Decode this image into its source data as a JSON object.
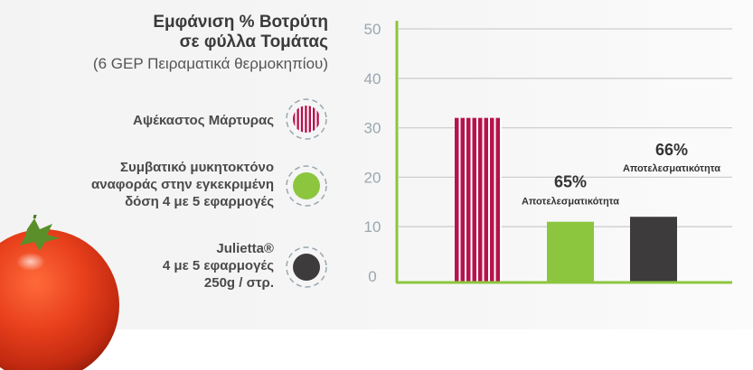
{
  "chart_data": {
    "type": "bar",
    "title_line1": "Εμφάνιση % Βοτρύτη",
    "title_line2": "σε φύλλα Τομάτας",
    "subtitle": "(6 GEP Πειραματικά θερμοκηπίου)",
    "yticks": [
      0,
      10,
      20,
      30,
      40,
      50
    ],
    "ylim": [
      0,
      50
    ],
    "grid": true,
    "series": [
      {
        "name_lines": [
          "Αψέκαστος Μάρτυρας"
        ],
        "value": 32,
        "color": "#b5134d",
        "pattern": "stripes",
        "label_pct": "",
        "label_text": ""
      },
      {
        "name_lines": [
          "Συμβατικό μυκητοκτόνο",
          "αναφοράς στην εγκεκριμένη",
          "δόση 4 με 5 εφαρμογές"
        ],
        "value": 11,
        "color": "#8cc63f",
        "pattern": "solid",
        "label_pct": "65%",
        "label_text": "Αποτελεσματικότητα"
      },
      {
        "name_lines": [
          "Julietta®",
          "4 με 5 εφαρμογές",
          "250g / στρ."
        ],
        "value": 12,
        "color": "#3d3b3c",
        "pattern": "solid",
        "label_pct": "66%",
        "label_text": "Αποτελεσματικότητα"
      }
    ]
  }
}
